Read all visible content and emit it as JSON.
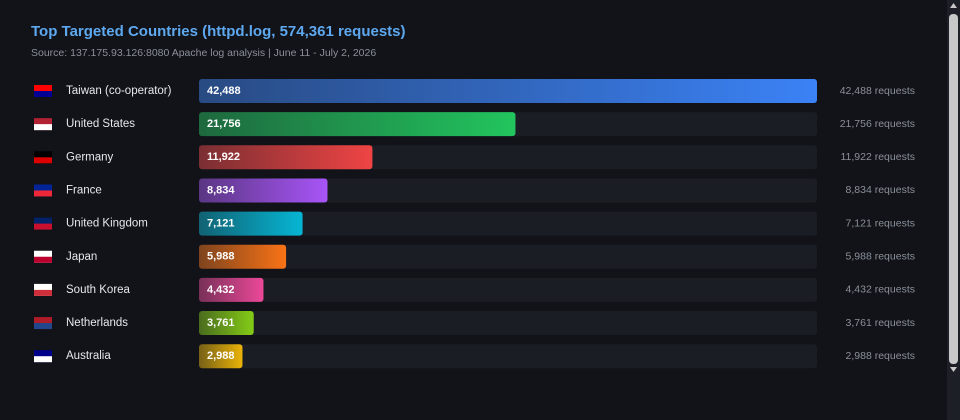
{
  "chart_data": {
    "type": "bar",
    "orientation": "horizontal",
    "title": "Top Targeted Countries (httpd.log, 574,361 requests)",
    "subtitle": "Source: 137.175.93.126:8080 Apache log analysis | June 11 - July 2, 2026",
    "categories": [
      "Taiwan (co-operator)",
      "United States",
      "Germany",
      "France",
      "United Kingdom",
      "Japan",
      "South Korea",
      "Netherlands",
      "Australia"
    ],
    "values": [
      42488,
      21756,
      11922,
      8834,
      7121,
      5988,
      4432,
      3761,
      2988
    ],
    "value_labels": [
      "42,488",
      "21,756",
      "11,922",
      "8,834",
      "7,121",
      "5,988",
      "4,432",
      "3,761",
      "2,988"
    ],
    "request_labels": [
      "42,488 requests",
      "21,756 requests",
      "11,922 requests",
      "8,834 requests",
      "7,121 requests",
      "5,988 requests",
      "4,432 requests",
      "3,761 requests",
      "2,988 requests"
    ],
    "colors": [
      "#3b82f6",
      "#22c55e",
      "#ef4444",
      "#a855f7",
      "#06b6d4",
      "#f97316",
      "#ec4899",
      "#84cc16",
      "#eab308"
    ],
    "xlim": [
      0,
      42488
    ]
  }
}
